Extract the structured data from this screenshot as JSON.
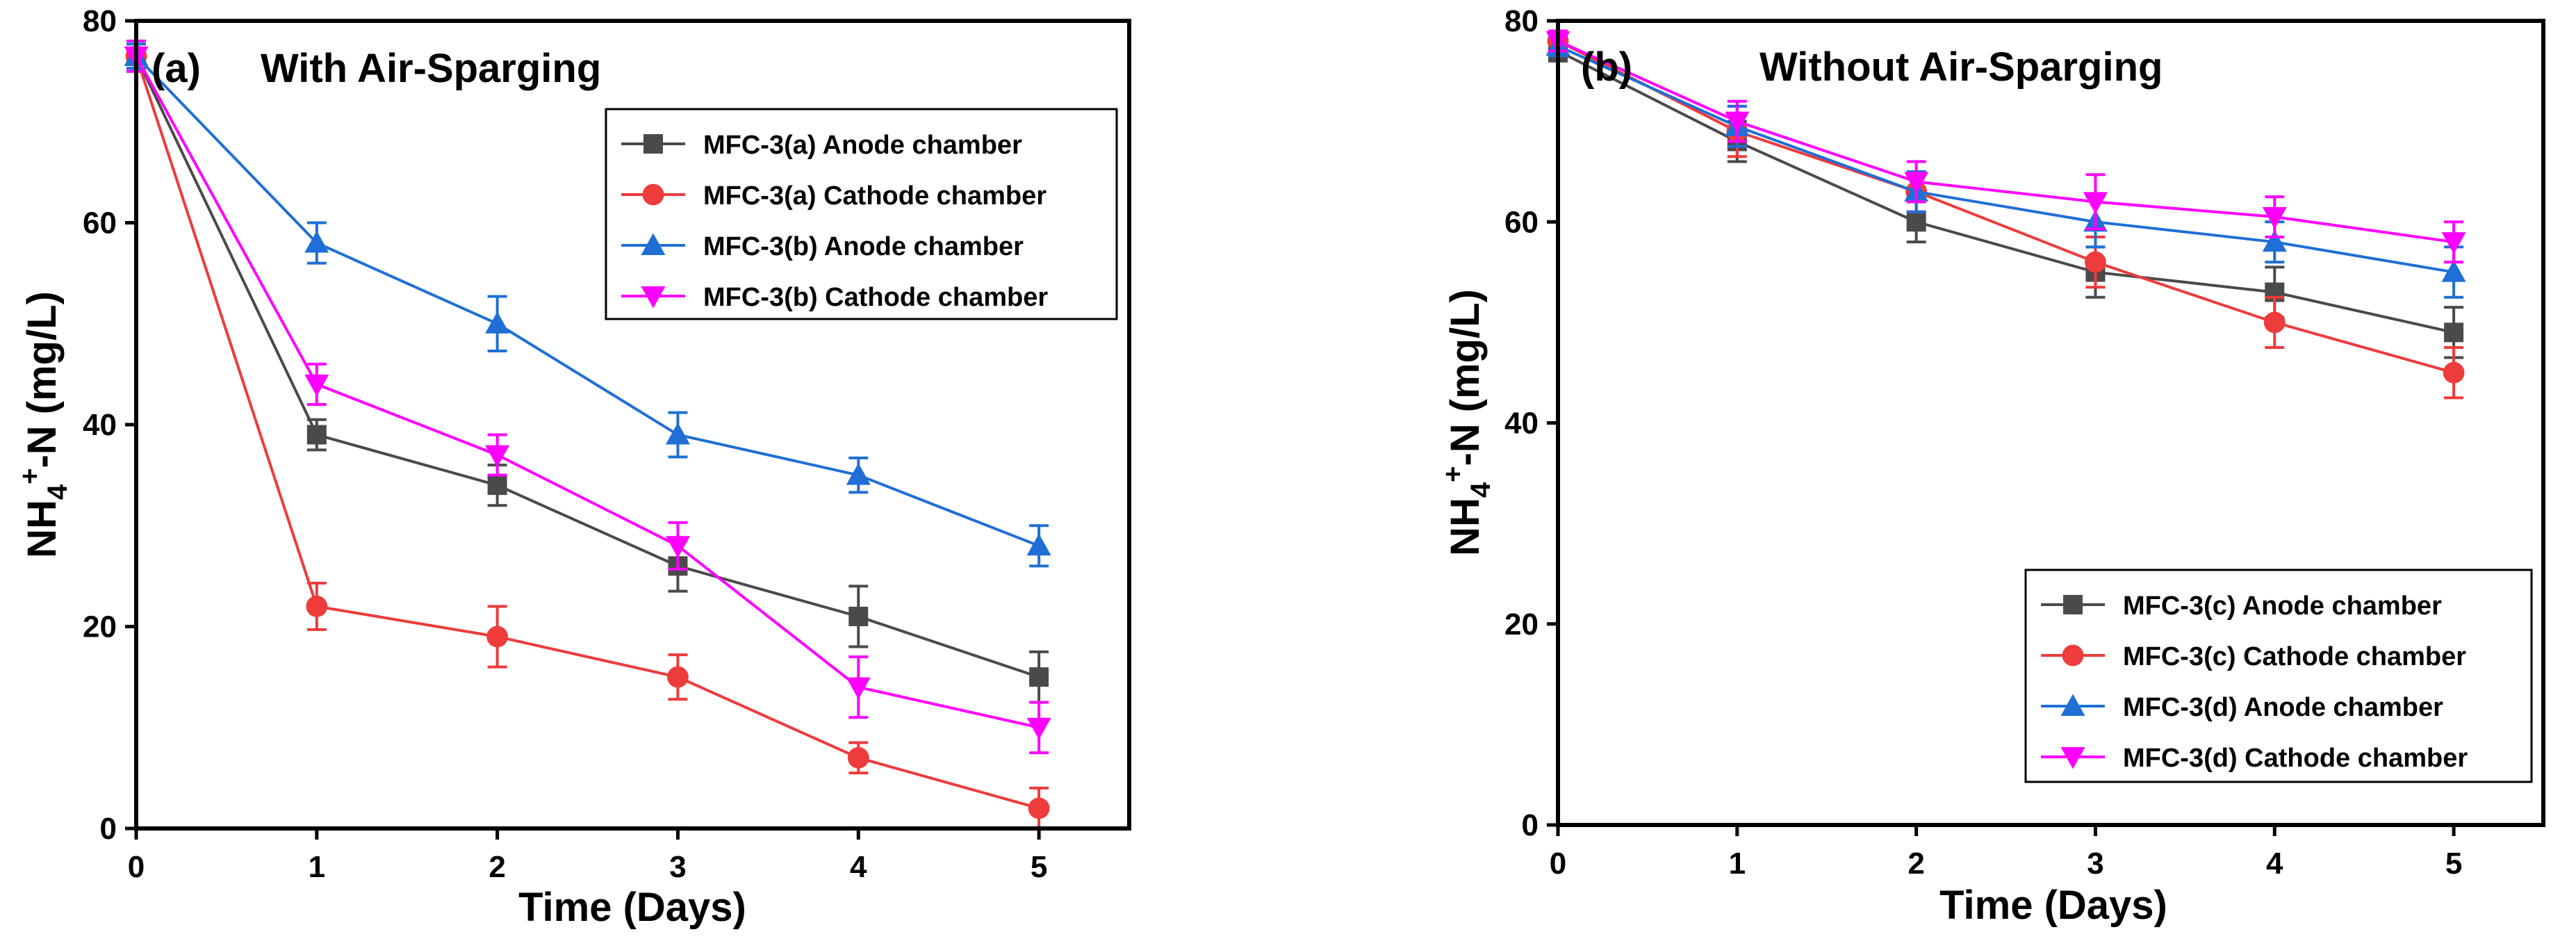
{
  "chart_data": [
    {
      "type": "line",
      "panel": "(a)",
      "title": "With Air-Sparging",
      "xlabel": "Time (Days)",
      "ylabel": {
        "base": "NH",
        "sub": "4",
        "sup": "+",
        "rest": "-N (mg/L)"
      },
      "xlim": [
        0,
        5.5
      ],
      "ylim": [
        0,
        80
      ],
      "xticks": [
        0,
        1,
        2,
        3,
        4,
        5
      ],
      "yticks": [
        0,
        20,
        40,
        60,
        80
      ],
      "legend_position": "top-right",
      "x": [
        0,
        1,
        2,
        3,
        4,
        5
      ],
      "series": [
        {
          "name": "MFC-3(a) Anode chamber",
          "color": "#4a4a4a",
          "marker": "square",
          "values": [
            76.5,
            39,
            34,
            26,
            21,
            15
          ],
          "errors": [
            1.5,
            1.5,
            2,
            2.5,
            3,
            2.5
          ]
        },
        {
          "name": "MFC-3(a) Cathode chamber",
          "color": "#ee3b3b",
          "marker": "circle",
          "values": [
            76.5,
            22,
            19,
            15,
            7,
            2
          ],
          "errors": [
            1.5,
            2.3,
            3,
            2.2,
            1.5,
            2
          ]
        },
        {
          "name": "MFC-3(b) Anode chamber",
          "color": "#1f6fd6",
          "marker": "triangle-up",
          "values": [
            76.5,
            58,
            50,
            39,
            35,
            28
          ],
          "errors": [
            1.2,
            2,
            2.7,
            2.2,
            1.7,
            2
          ]
        },
        {
          "name": "MFC-3(b) Cathode chamber",
          "color": "#ff00ff",
          "marker": "triangle-down",
          "values": [
            76.5,
            44,
            37,
            28,
            14,
            10
          ],
          "errors": [
            1.5,
            2,
            2,
            2.3,
            3,
            2.5
          ]
        }
      ]
    },
    {
      "type": "line",
      "panel": "(b)",
      "title": "Without Air-Sparging",
      "xlabel": "Time (Days)",
      "ylabel": {
        "base": "NH",
        "sub": "4",
        "sup": "+",
        "rest": "-N (mg/L)"
      },
      "xlim": [
        0,
        5.5
      ],
      "ylim": [
        0,
        80
      ],
      "xticks": [
        0,
        1,
        2,
        3,
        4,
        5
      ],
      "yticks": [
        0,
        20,
        40,
        60,
        80
      ],
      "legend_position": "bottom-right",
      "x": [
        0,
        1,
        2,
        3,
        4,
        5
      ],
      "series": [
        {
          "name": "MFC-3(c) Anode chamber",
          "color": "#4a4a4a",
          "marker": "square",
          "values": [
            77,
            68,
            60,
            55,
            53,
            49
          ],
          "errors": [
            1,
            2,
            2,
            2.5,
            2.5,
            2.5
          ]
        },
        {
          "name": "MFC-3(c) Cathode chamber",
          "color": "#ee3b3b",
          "marker": "circle",
          "values": [
            78,
            69,
            63,
            56,
            50,
            45
          ],
          "errors": [
            1,
            2.5,
            2,
            2.5,
            2.5,
            2.5
          ]
        },
        {
          "name": "MFC-3(d) Anode chamber",
          "color": "#1f6fd6",
          "marker": "triangle-up",
          "values": [
            77.5,
            69.5,
            63,
            60,
            58,
            55
          ],
          "errors": [
            1,
            2,
            2,
            2.5,
            2,
            2.5
          ]
        },
        {
          "name": "MFC-3(d) Cathode chamber",
          "color": "#ff00ff",
          "marker": "triangle-down",
          "values": [
            78,
            70,
            64,
            62,
            60.5,
            58
          ],
          "errors": [
            1,
            2,
            2,
            2.7,
            2,
            2
          ]
        }
      ]
    }
  ]
}
